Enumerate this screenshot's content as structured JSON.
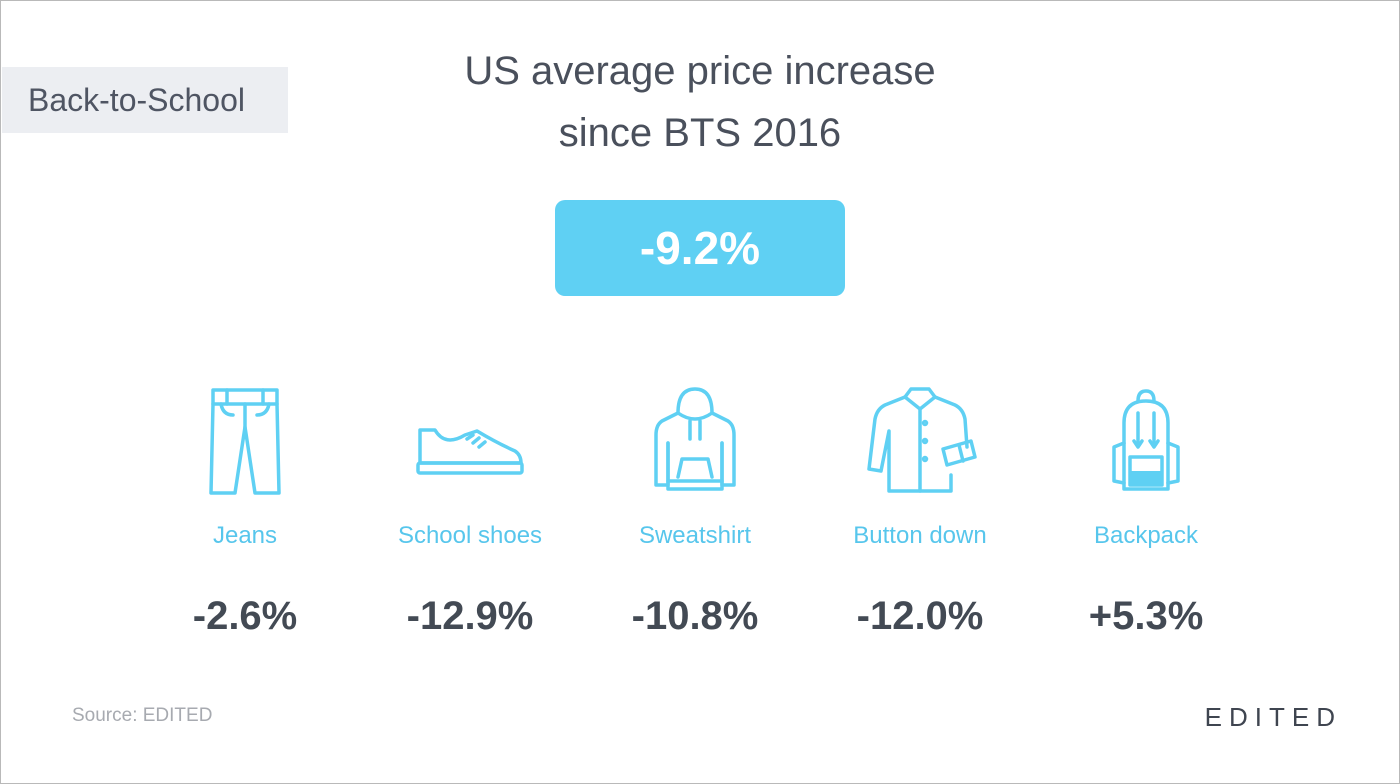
{
  "tag": "Back-to-School",
  "title": {
    "line1": "US average price increase",
    "line2": "since BTS 2016"
  },
  "total": "-9.2%",
  "accent_color": "#5fd0f3",
  "categories": [
    {
      "icon": "jeans-icon",
      "label": "Jeans",
      "value": "-2.6%"
    },
    {
      "icon": "shoe-icon",
      "label": "School shoes",
      "value": "-12.9%"
    },
    {
      "icon": "hoodie-icon",
      "label": "Sweatshirt",
      "value": "-10.8%"
    },
    {
      "icon": "shirt-icon",
      "label": "Button down",
      "value": "-12.0%"
    },
    {
      "icon": "backpack-icon",
      "label": "Backpack",
      "value": "+5.3%"
    }
  ],
  "source": "Source: EDITED",
  "brand": "EDITED"
}
